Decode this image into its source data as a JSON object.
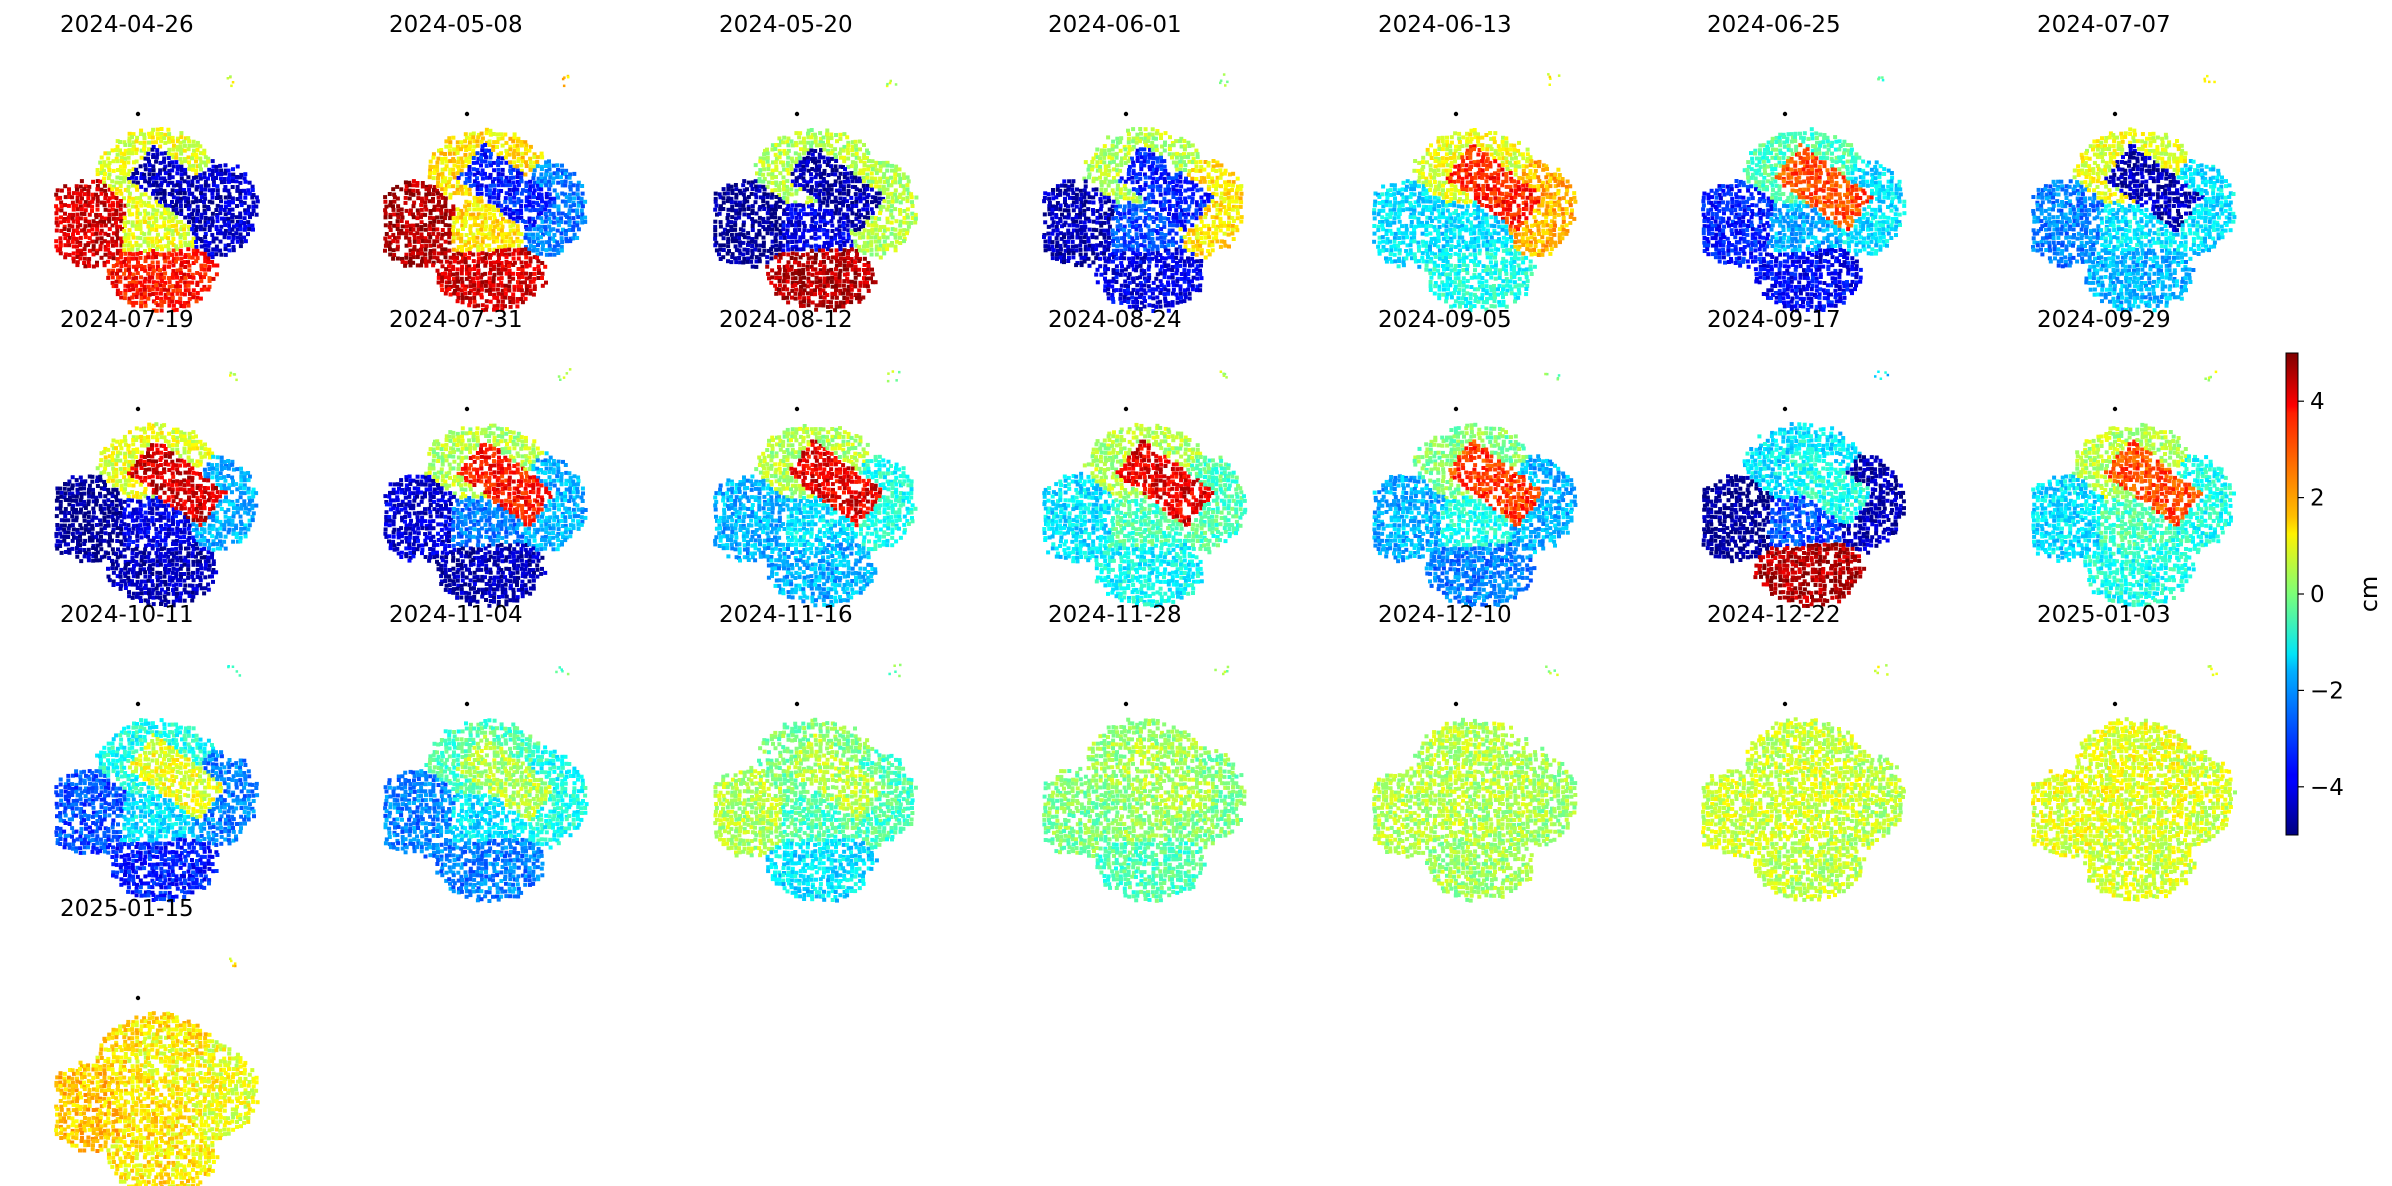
{
  "chart_data": {
    "type": "heatmap",
    "grid": false,
    "colormap": "jet",
    "colorbar": {
      "label": "cm",
      "range": [
        -5,
        5
      ],
      "ticks": [
        -4,
        -2,
        0,
        2,
        4
      ],
      "tick_labels": [
        "−4",
        "−2",
        "0",
        "2",
        "4"
      ],
      "placement": "right"
    },
    "panels": [
      {
        "date": "2024-04-26",
        "regions": {
          "west": 4.2,
          "south": 3.6,
          "center": 1.0,
          "ridge": -4.5,
          "east": -4.2,
          "north": 1.0
        }
      },
      {
        "date": "2024-05-08",
        "regions": {
          "west": 4.6,
          "south": 4.2,
          "center": 1.5,
          "ridge": -3.5,
          "east": -2.5,
          "north": 1.5
        }
      },
      {
        "date": "2024-05-20",
        "regions": {
          "west": -4.8,
          "south": 4.5,
          "center": -4.0,
          "ridge": -4.6,
          "east": 0.5,
          "north": 0.5
        }
      },
      {
        "date": "2024-06-01",
        "regions": {
          "west": -4.5,
          "south": -4.0,
          "center": -3.0,
          "ridge": -3.5,
          "east": 1.5,
          "north": 0.5
        }
      },
      {
        "date": "2024-06-13",
        "regions": {
          "west": -1.5,
          "south": -1.0,
          "center": -1.5,
          "ridge": 3.5,
          "east": 2.0,
          "north": 1.0
        }
      },
      {
        "date": "2024-06-25",
        "regions": {
          "west": -3.5,
          "south": -3.8,
          "center": -2.0,
          "ridge": 3.0,
          "east": -1.5,
          "north": -0.5
        }
      },
      {
        "date": "2024-07-07",
        "regions": {
          "west": -2.5,
          "south": -2.0,
          "center": -1.5,
          "ridge": -4.5,
          "east": -1.5,
          "north": 1.0
        }
      },
      {
        "date": "2024-07-19",
        "regions": {
          "west": -4.8,
          "south": -4.5,
          "center": -4.0,
          "ridge": 4.2,
          "east": -2.0,
          "north": 1.0
        }
      },
      {
        "date": "2024-07-31",
        "regions": {
          "west": -4.2,
          "south": -4.5,
          "center": -2.5,
          "ridge": 3.6,
          "east": -2.0,
          "north": 0.5
        }
      },
      {
        "date": "2024-08-12",
        "regions": {
          "west": -2.0,
          "south": -2.0,
          "center": -1.5,
          "ridge": 4.0,
          "east": -1.0,
          "north": 0.5
        }
      },
      {
        "date": "2024-08-24",
        "regions": {
          "west": -1.5,
          "south": -1.2,
          "center": -0.5,
          "ridge": 4.0,
          "east": -0.5,
          "north": 0.5
        }
      },
      {
        "date": "2024-09-05",
        "regions": {
          "west": -2.0,
          "south": -2.5,
          "center": -1.0,
          "ridge": 3.2,
          "east": -2.0,
          "north": 0.0
        }
      },
      {
        "date": "2024-09-17",
        "regions": {
          "west": -4.8,
          "south": 4.5,
          "center": -3.0,
          "ridge": -1.0,
          "east": -4.5,
          "north": -1.5
        }
      },
      {
        "date": "2024-09-29",
        "regions": {
          "west": -1.5,
          "south": -1.0,
          "center": -0.5,
          "ridge": 3.0,
          "east": -1.0,
          "north": 0.5
        }
      },
      {
        "date": "2024-10-11",
        "regions": {
          "west": -3.0,
          "south": -3.5,
          "center": -1.5,
          "ridge": 1.0,
          "east": -2.5,
          "north": -1.0
        }
      },
      {
        "date": "2024-11-04",
        "regions": {
          "west": -2.5,
          "south": -2.5,
          "center": -1.5,
          "ridge": 0.5,
          "east": -1.0,
          "north": -0.5
        }
      },
      {
        "date": "2024-11-16",
        "regions": {
          "west": 0.5,
          "south": -1.5,
          "center": -0.5,
          "ridge": 0.5,
          "east": -0.5,
          "north": 0.0
        }
      },
      {
        "date": "2024-11-28",
        "regions": {
          "west": 0.0,
          "south": -0.5,
          "center": 0.2,
          "ridge": 0.5,
          "east": 0.0,
          "north": 0.3
        }
      },
      {
        "date": "2024-12-10",
        "regions": {
          "west": 0.5,
          "south": 0.3,
          "center": 0.5,
          "ridge": 0.5,
          "east": 0.3,
          "north": 0.5
        }
      },
      {
        "date": "2024-12-22",
        "regions": {
          "west": 0.8,
          "south": 0.6,
          "center": 0.8,
          "ridge": 0.8,
          "east": 0.6,
          "north": 0.7
        }
      },
      {
        "date": "2025-01-03",
        "regions": {
          "west": 1.0,
          "south": 0.8,
          "center": 0.9,
          "ridge": 1.0,
          "east": 0.8,
          "north": 1.0
        }
      },
      {
        "date": "2025-01-15",
        "regions": {
          "west": 1.8,
          "south": 1.4,
          "center": 1.5,
          "ridge": 1.2,
          "east": 1.0,
          "north": 1.5
        }
      }
    ]
  }
}
